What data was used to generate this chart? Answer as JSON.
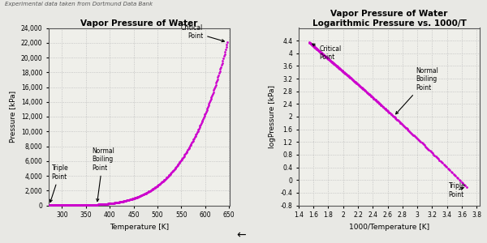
{
  "title_left": "Vapor Pressure of Water",
  "title_right_line1": "Vapor Pressure of Water",
  "title_right_line2": "Logarithmic Pressure vs. 1000/T",
  "super_title": "Experimental data taken from Dortmund Data Bank",
  "xlabel_left": "Temperature [K]",
  "ylabel_left": "Pressure [kPa]",
  "xlabel_right": "1000/Temperature [K]",
  "ylabel_right": "logPressure [kPa]",
  "xlim_left": [
    272,
    652
  ],
  "ylim_left": [
    0,
    24000
  ],
  "xlim_right": [
    1.4,
    3.84
  ],
  "ylim_right": [
    -0.8,
    4.8
  ],
  "xticks_left": [
    300,
    350,
    400,
    450,
    500,
    550,
    600,
    650
  ],
  "yticks_left": [
    0,
    2000,
    4000,
    6000,
    8000,
    10000,
    12000,
    14000,
    16000,
    18000,
    20000,
    22000,
    24000
  ],
  "xticks_right": [
    1.4,
    1.6,
    1.8,
    2.0,
    2.2,
    2.4,
    2.6,
    2.8,
    3.0,
    3.2,
    3.4,
    3.6,
    3.8
  ],
  "yticks_right": [
    -0.8,
    -0.4,
    0.0,
    0.4,
    0.8,
    1.2,
    1.6,
    2.0,
    2.4,
    2.8,
    3.2,
    3.6,
    4.0,
    4.4
  ],
  "dot_color": "#CC00CC",
  "dot_size": 4,
  "bg_color": "#EFEFEA",
  "grid_color": "#BBBBBB",
  "fig_bg": "#E8E8E4"
}
